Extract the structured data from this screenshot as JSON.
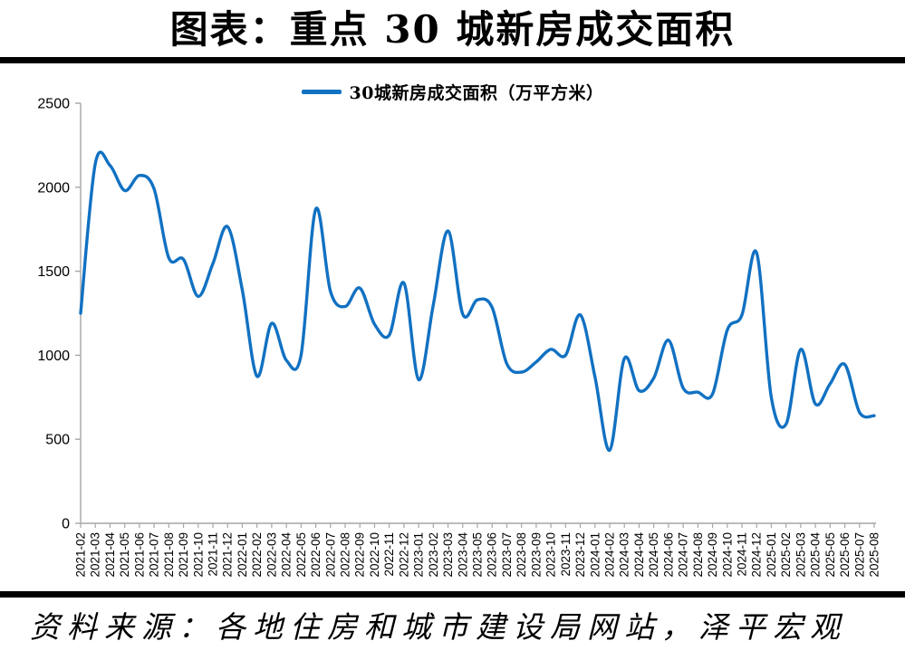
{
  "page": {
    "title": "图表：重点 30 城新房成交面积",
    "source_note": "资料来源：各地住房和城市建设局网站，泽平宏观"
  },
  "colors": {
    "line": "#1171C2",
    "axis": "#A6A6A6",
    "text": "#000000",
    "divider": "#000000"
  },
  "chart_data": {
    "type": "line",
    "title": "图表：重点 30 城新房成交面积",
    "legend": [
      "30城新房成交面积（万平方米）"
    ],
    "legend_position": "top-center",
    "grid": false,
    "smooth": true,
    "xlabel": "",
    "ylabel": "",
    "ylim": [
      0,
      2500
    ],
    "yticks": [
      0,
      500,
      1000,
      1500,
      2000,
      2500
    ],
    "x": [
      "2021-02",
      "2021-03",
      "2021-04",
      "2021-05",
      "2021-06",
      "2021-07",
      "2021-08",
      "2021-09",
      "2021-10",
      "2021-11",
      "2021-12",
      "2022-01",
      "2022-02",
      "2022-03",
      "2022-04",
      "2022-05",
      "2022-06",
      "2022-07",
      "2022-08",
      "2022-09",
      "2022-10",
      "2022-11",
      "2022-12",
      "2023-01",
      "2023-02",
      "2023-03",
      "2023-04",
      "2023-05",
      "2023-06",
      "2023-07",
      "2023-08",
      "2023-09",
      "2023-10",
      "2023-11",
      "2023-12",
      "2024-01",
      "2024-02",
      "2024-03",
      "2024-04",
      "2024-05",
      "2024-06",
      "2024-07",
      "2024-08",
      "2024-09",
      "2024-10",
      "2024-11",
      "2024-12",
      "2025-01",
      "2025-02",
      "2025-03",
      "2025-04",
      "2025-05",
      "2025-06",
      "2025-07",
      "2025-08"
    ],
    "series": [
      {
        "name": "30城新房成交面积（万平方米）",
        "values": [
          1250,
          2140,
          2130,
          1980,
          2070,
          1990,
          1580,
          1570,
          1350,
          1545,
          1765,
          1390,
          875,
          1190,
          970,
          1000,
          1870,
          1380,
          1290,
          1400,
          1185,
          1120,
          1430,
          855,
          1300,
          1740,
          1245,
          1330,
          1285,
          950,
          900,
          960,
          1035,
          1000,
          1240,
          870,
          435,
          980,
          790,
          865,
          1090,
          805,
          780,
          770,
          1150,
          1240,
          1610,
          750,
          590,
          1035,
          710,
          830,
          945,
          660,
          640
        ]
      }
    ]
  }
}
